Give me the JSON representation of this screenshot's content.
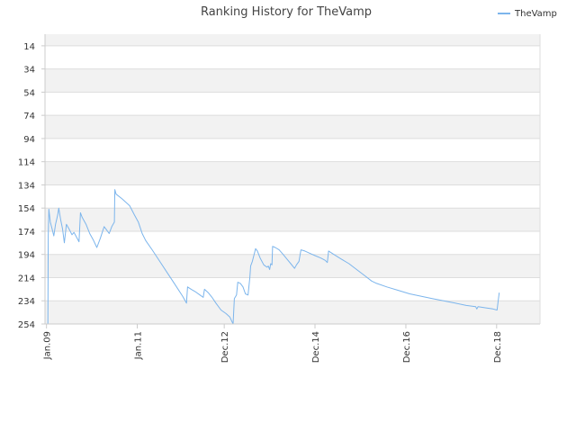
{
  "chart_data": {
    "type": "line",
    "title": "Ranking History for TheVamp",
    "xlabel": "",
    "ylabel": "",
    "y_inverted": true,
    "ylim": [
      254,
      4
    ],
    "y_ticks": [
      "14",
      "34",
      "54",
      "74",
      "94",
      "114",
      "134",
      "154",
      "174",
      "194",
      "214",
      "234",
      "254"
    ],
    "x_ticks": [
      "Jan.09",
      "Jan.11",
      "Dec.12",
      "Dec.14",
      "Dec.16",
      "Dec.18"
    ],
    "x_range": [
      "2008-12-20",
      "2019-11-15"
    ],
    "grid": "horizontal bands",
    "legend_position": "top-right",
    "colors": {
      "series": "#7cb5ec",
      "band": "#f2f2f2",
      "grid": "#dddddd",
      "axis": "#cccccc"
    },
    "series": [
      {
        "name": "TheVamp",
        "points": [
          [
            "2009-01-12",
            254
          ],
          [
            "2009-01-15",
            178
          ],
          [
            "2009-01-20",
            155
          ],
          [
            "2009-02-01",
            166
          ],
          [
            "2009-02-15",
            172
          ],
          [
            "2009-03-01",
            178
          ],
          [
            "2009-03-15",
            168
          ],
          [
            "2009-04-01",
            160
          ],
          [
            "2009-04-10",
            154
          ],
          [
            "2009-04-25",
            164
          ],
          [
            "2009-05-10",
            172
          ],
          [
            "2009-05-25",
            184
          ],
          [
            "2009-06-10",
            168
          ],
          [
            "2009-07-01",
            172
          ],
          [
            "2009-07-25",
            177
          ],
          [
            "2009-08-10",
            175
          ],
          [
            "2009-08-25",
            178
          ],
          [
            "2009-09-20",
            183
          ],
          [
            "2009-10-01",
            158
          ],
          [
            "2009-10-15",
            162
          ],
          [
            "2009-11-15",
            168
          ],
          [
            "2009-12-15",
            176
          ],
          [
            "2010-01-15",
            182
          ],
          [
            "2010-02-10",
            188
          ],
          [
            "2010-03-10",
            180
          ],
          [
            "2010-04-10",
            170
          ],
          [
            "2010-05-01",
            173
          ],
          [
            "2010-05-20",
            176
          ],
          [
            "2010-06-10",
            170
          ],
          [
            "2010-07-01",
            166
          ],
          [
            "2010-07-05",
            138
          ],
          [
            "2010-07-15",
            142
          ],
          [
            "2010-09-01",
            146
          ],
          [
            "2010-11-01",
            152
          ],
          [
            "2010-12-10",
            160
          ],
          [
            "2011-01-10",
            166
          ],
          [
            "2011-02-10",
            176
          ],
          [
            "2011-03-10",
            182
          ],
          [
            "2011-05-01",
            190
          ],
          [
            "2011-07-01",
            200
          ],
          [
            "2011-09-01",
            210
          ],
          [
            "2011-11-01",
            220
          ],
          [
            "2012-01-01",
            230
          ],
          [
            "2012-02-01",
            236
          ],
          [
            "2012-02-10",
            222
          ],
          [
            "2012-03-10",
            224
          ],
          [
            "2012-04-10",
            226
          ],
          [
            "2012-05-20",
            229
          ],
          [
            "2012-06-15",
            231
          ],
          [
            "2012-06-25",
            224
          ],
          [
            "2012-07-25",
            227
          ],
          [
            "2012-08-25",
            231
          ],
          [
            "2012-09-25",
            236
          ],
          [
            "2012-11-05",
            242
          ],
          [
            "2012-12-15",
            245
          ],
          [
            "2013-01-15",
            248
          ],
          [
            "2013-02-10",
            254
          ],
          [
            "2013-02-20",
            232
          ],
          [
            "2013-03-10",
            229
          ],
          [
            "2013-03-20",
            218
          ],
          [
            "2013-04-10",
            219
          ],
          [
            "2013-05-01",
            222
          ],
          [
            "2013-05-20",
            228
          ],
          [
            "2013-06-10",
            229
          ],
          [
            "2013-06-25",
            214
          ],
          [
            "2013-07-01",
            204
          ],
          [
            "2013-07-15",
            200
          ],
          [
            "2013-08-10",
            189
          ],
          [
            "2013-08-25",
            191
          ],
          [
            "2013-09-15",
            197
          ],
          [
            "2013-10-15",
            203
          ],
          [
            "2013-11-10",
            205
          ],
          [
            "2013-11-20",
            204
          ],
          [
            "2013-12-01",
            207
          ],
          [
            "2013-12-10",
            202
          ],
          [
            "2013-12-20",
            203
          ],
          [
            "2013-12-25",
            187
          ],
          [
            "2014-01-15",
            188
          ],
          [
            "2014-02-15",
            190
          ],
          [
            "2014-03-20",
            194
          ],
          [
            "2014-04-20",
            198
          ],
          [
            "2014-05-20",
            202
          ],
          [
            "2014-06-20",
            206
          ],
          [
            "2014-07-05",
            203
          ],
          [
            "2014-07-25",
            200
          ],
          [
            "2014-08-10",
            190
          ],
          [
            "2014-09-10",
            191
          ],
          [
            "2014-10-20",
            193
          ],
          [
            "2014-12-01",
            195
          ],
          [
            "2015-01-15",
            197
          ],
          [
            "2015-02-20",
            199
          ],
          [
            "2015-03-10",
            201
          ],
          [
            "2015-03-20",
            191
          ],
          [
            "2015-05-01",
            194
          ],
          [
            "2015-07-01",
            198
          ],
          [
            "2015-09-01",
            202
          ],
          [
            "2015-11-01",
            207
          ],
          [
            "2016-01-01",
            212
          ],
          [
            "2016-03-01",
            217
          ],
          [
            "2016-04-10",
            219
          ],
          [
            "2016-07-01",
            222
          ],
          [
            "2016-10-01",
            225
          ],
          [
            "2017-01-01",
            228
          ],
          [
            "2017-04-01",
            230
          ],
          [
            "2017-07-01",
            232
          ],
          [
            "2017-10-01",
            234
          ],
          [
            "2018-01-01",
            236
          ],
          [
            "2018-04-01",
            238
          ],
          [
            "2018-06-15",
            239
          ],
          [
            "2018-06-25",
            241
          ],
          [
            "2018-07-05",
            239
          ],
          [
            "2018-09-01",
            240
          ],
          [
            "2018-11-01",
            241
          ],
          [
            "2018-12-05",
            242
          ],
          [
            "2018-12-15",
            233
          ],
          [
            "2018-12-22",
            227
          ]
        ]
      }
    ]
  }
}
